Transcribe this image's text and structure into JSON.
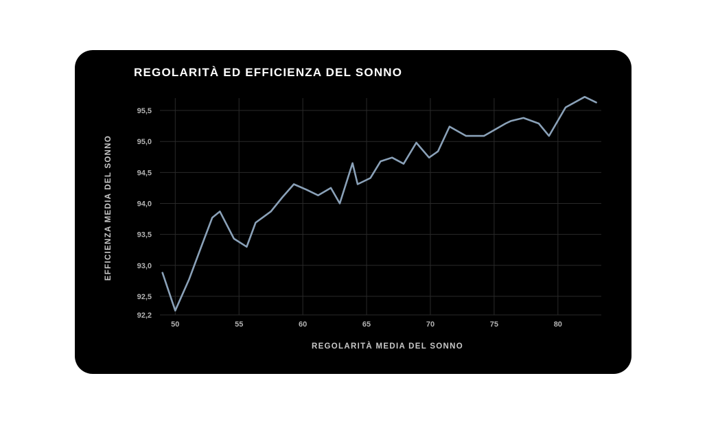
{
  "chart_data": {
    "type": "line",
    "title": "REGOLARITÀ ED EFFICIENZA DEL SONNO",
    "xlabel": "REGOLARITÀ MEDIA DEL SONNO",
    "ylabel": "EFFICIENZA MEDIA DEL SONNO",
    "xlim": [
      48.8,
      83.4
    ],
    "ylim": [
      92.2,
      95.7
    ],
    "xticks": [
      "50",
      "55",
      "60",
      "65",
      "70",
      "75",
      "80"
    ],
    "xtick_values": [
      50,
      55,
      60,
      65,
      70,
      75,
      80
    ],
    "yticks": [
      "92,2",
      "92,5",
      "93,0",
      "93,5",
      "94,0",
      "94,5",
      "95,0",
      "95,5"
    ],
    "ytick_values": [
      92.2,
      92.5,
      93.0,
      93.5,
      94.0,
      94.5,
      95.0,
      95.5
    ],
    "grid": true,
    "line_color": "#8aa1b8",
    "grid_color": "#2a2a2a",
    "background": "#000000",
    "series": [
      {
        "x": [
          49.0,
          50.0,
          51.1,
          52.0,
          52.9,
          53.5,
          54.6,
          55.6,
          56.3,
          57.5,
          58.4,
          59.3,
          60.3,
          61.2,
          62.2,
          62.9,
          63.9,
          64.3,
          65.3,
          66.1,
          67.0,
          67.9,
          68.9,
          69.9,
          70.6,
          71.5,
          72.8,
          74.2,
          75.9,
          76.3,
          77.3,
          78.5,
          79.3,
          80.6,
          82.1,
          83.0
        ],
        "y": [
          92.88,
          92.27,
          92.78,
          93.28,
          93.77,
          93.87,
          93.43,
          93.3,
          93.69,
          93.87,
          94.1,
          94.31,
          94.22,
          94.13,
          94.25,
          94.0,
          94.65,
          94.31,
          94.41,
          94.68,
          94.74,
          94.64,
          94.98,
          94.74,
          94.84,
          95.24,
          95.09,
          95.09,
          95.29,
          95.33,
          95.38,
          95.29,
          95.09,
          95.55,
          95.72,
          95.63
        ]
      }
    ]
  }
}
